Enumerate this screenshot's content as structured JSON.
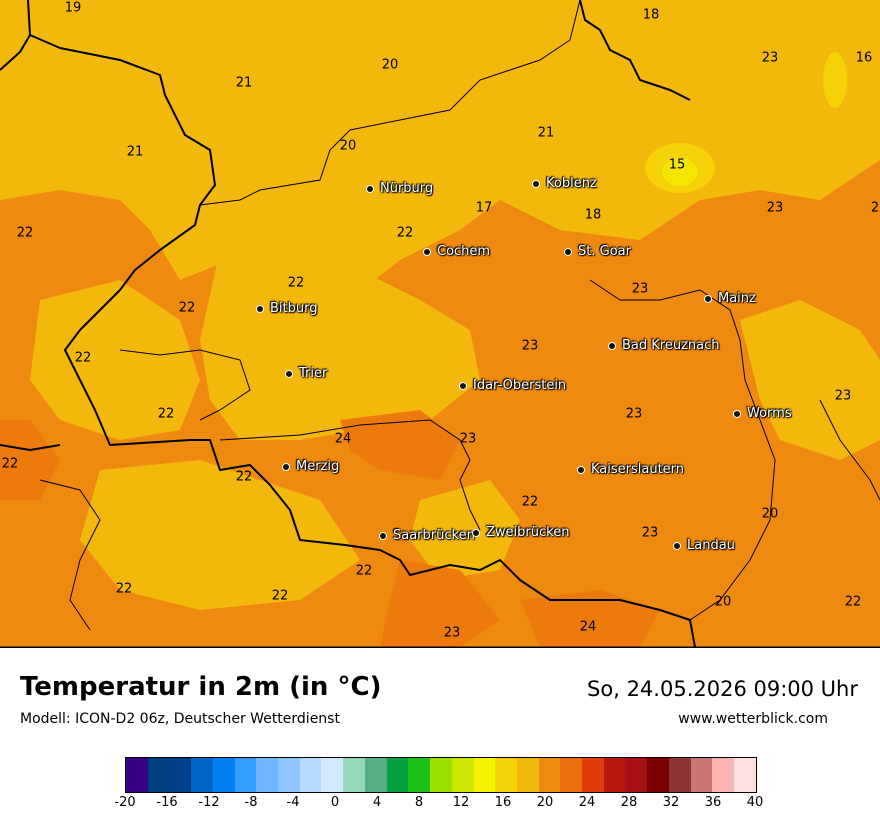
{
  "map": {
    "cities": [
      {
        "name": "Nürburg"
      },
      {
        "name": "Koblenz"
      },
      {
        "name": "Cochem"
      },
      {
        "name": "St. Goar"
      },
      {
        "name": "Bitburg"
      },
      {
        "name": "Mainz"
      },
      {
        "name": "Bad Kreuznach"
      },
      {
        "name": "Trier"
      },
      {
        "name": "Idar-Oberstein"
      },
      {
        "name": "Worms"
      },
      {
        "name": "Merzig"
      },
      {
        "name": "Kaiserslautern"
      },
      {
        "name": "Saarbrücken"
      },
      {
        "name": "Zweibrücken"
      },
      {
        "name": "Landau"
      }
    ],
    "temperatures": [
      "19",
      "18",
      "16",
      "21",
      "20",
      "23",
      "21",
      "20",
      "21",
      "15",
      "17",
      "18",
      "23",
      "22",
      "22",
      "22",
      "22",
      "23",
      "23",
      "22",
      "22",
      "23",
      "24",
      "23",
      "23",
      "22",
      "22",
      "22",
      "23",
      "20",
      "22",
      "22",
      "20",
      "22",
      "23",
      "24",
      "2"
    ],
    "colors": {
      "light_orange": "#f3b80c",
      "orange": "#ef8a10",
      "yellow": "#f5d108",
      "border_line": "#000000"
    }
  },
  "footer": {
    "title": "Temperatur in 2m (in °C)",
    "subtitle": "Modell: ICON-D2 06z, Deutscher Wetterdienst",
    "datetime": "So, 24.05.2026 09:00 Uhr",
    "website": "www.wetterblick.com"
  },
  "legend": {
    "colors": [
      "#360087",
      "#003e82",
      "#003f8a",
      "#0067c8",
      "#0081f2",
      "#339cff",
      "#6fb6ff",
      "#8fc6ff",
      "#b5d9ff",
      "#d3e8ff",
      "#94d9b7",
      "#56ae83",
      "#09a03f",
      "#1dc017",
      "#9be000",
      "#cde800",
      "#f4f200",
      "#f5d108",
      "#f3b80c",
      "#ef8a10",
      "#ec6d0c",
      "#e33b0c",
      "#b8170f",
      "#a61114",
      "#7c0000",
      "#8d3434",
      "#c97575",
      "#ffb4b4",
      "#ffe0e0"
    ],
    "labels": [
      "-20",
      "-16",
      "-12",
      "-8",
      "-4",
      "0",
      "4",
      "8",
      "12",
      "16",
      "20",
      "24",
      "28",
      "32",
      "36",
      "40"
    ]
  }
}
